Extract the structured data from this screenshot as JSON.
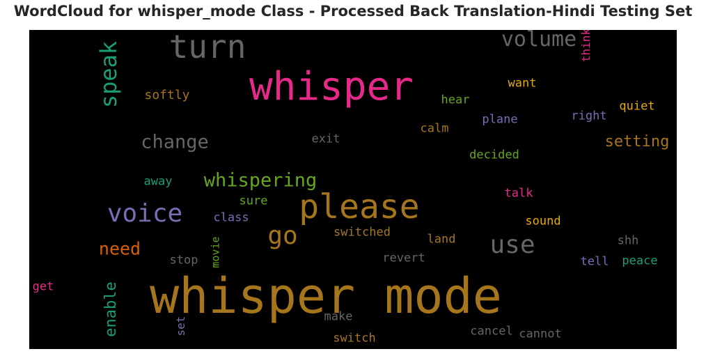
{
  "title": "WordCloud for whisper_mode Class - Processed Back Translation-Hindi Testing Set",
  "chart_data": {
    "type": "wordcloud",
    "background": "#000000",
    "words": [
      {
        "text": "whisper mode",
        "color": "#a6761d",
        "weight": 1.0
      },
      {
        "text": "whisper",
        "color": "#e7298a",
        "weight": 0.82
      },
      {
        "text": "please",
        "color": "#a6761d",
        "weight": 0.72
      },
      {
        "text": "turn",
        "color": "#666666",
        "weight": 0.66
      },
      {
        "text": "voice",
        "color": "#7570b3",
        "weight": 0.54
      },
      {
        "text": "use",
        "color": "#666666",
        "weight": 0.54
      },
      {
        "text": "go",
        "color": "#a6761d",
        "weight": 0.54
      },
      {
        "text": "speak",
        "color": "#1b9e77",
        "weight": 0.5
      },
      {
        "text": "volume",
        "color": "#666666",
        "weight": 0.48
      },
      {
        "text": "change",
        "color": "#666666",
        "weight": 0.42
      },
      {
        "text": "whispering",
        "color": "#66a61e",
        "weight": 0.42
      },
      {
        "text": "need",
        "color": "#d95f02",
        "weight": 0.4
      },
      {
        "text": "setting",
        "color": "#a6761d",
        "weight": 0.36
      },
      {
        "text": "enable",
        "color": "#1b9e77",
        "weight": 0.34
      },
      {
        "text": "softly",
        "color": "#a6761d",
        "weight": 0.3
      },
      {
        "text": "think",
        "color": "#e7298a",
        "weight": 0.28
      },
      {
        "text": "want",
        "color": "#e6ab02",
        "weight": 0.28
      },
      {
        "text": "hear",
        "color": "#66a61e",
        "weight": 0.28
      },
      {
        "text": "quiet",
        "color": "#e6ab02",
        "weight": 0.28
      },
      {
        "text": "right",
        "color": "#7570b3",
        "weight": 0.28
      },
      {
        "text": "plane",
        "color": "#7570b3",
        "weight": 0.28
      },
      {
        "text": "calm",
        "color": "#a6761d",
        "weight": 0.28
      },
      {
        "text": "exit",
        "color": "#666666",
        "weight": 0.28
      },
      {
        "text": "decided",
        "color": "#66a61e",
        "weight": 0.28
      },
      {
        "text": "away",
        "color": "#1b9e77",
        "weight": 0.28
      },
      {
        "text": "talk",
        "color": "#e7298a",
        "weight": 0.28
      },
      {
        "text": "sure",
        "color": "#66a61e",
        "weight": 0.28
      },
      {
        "text": "class",
        "color": "#7570b3",
        "weight": 0.28
      },
      {
        "text": "sound",
        "color": "#e6ab02",
        "weight": 0.28
      },
      {
        "text": "switched",
        "color": "#a6761d",
        "weight": 0.28
      },
      {
        "text": "land",
        "color": "#a6761d",
        "weight": 0.28
      },
      {
        "text": "shh",
        "color": "#666666",
        "weight": 0.28
      },
      {
        "text": "stop",
        "color": "#666666",
        "weight": 0.28
      },
      {
        "text": "movie",
        "color": "#66a61e",
        "weight": 0.26
      },
      {
        "text": "revert",
        "color": "#666666",
        "weight": 0.28
      },
      {
        "text": "tell",
        "color": "#7570b3",
        "weight": 0.28
      },
      {
        "text": "peace",
        "color": "#1b9e77",
        "weight": 0.28
      },
      {
        "text": "get",
        "color": "#e7298a",
        "weight": 0.28
      },
      {
        "text": "set",
        "color": "#7570b3",
        "weight": 0.26
      },
      {
        "text": "make",
        "color": "#666666",
        "weight": 0.28
      },
      {
        "text": "cancel",
        "color": "#666666",
        "weight": 0.28
      },
      {
        "text": "cannot",
        "color": "#666666",
        "weight": 0.28
      },
      {
        "text": "switch",
        "color": "#a6761d",
        "weight": 0.28
      }
    ]
  }
}
